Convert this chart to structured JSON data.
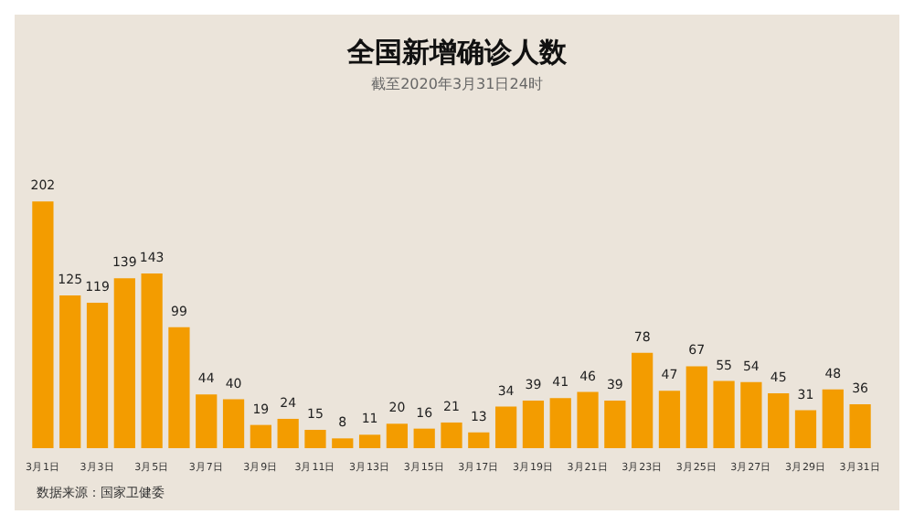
{
  "chart_data": {
    "type": "bar",
    "title": "全国新增确诊人数",
    "subtitle": "截至2020年3月31日24时",
    "categories": [
      "3月1日",
      null,
      "3月3日",
      null,
      "3月5日",
      null,
      "3月7日",
      null,
      "3月9日",
      null,
      "3月11日",
      null,
      "3月13日",
      null,
      "3月15日",
      null,
      "3月17日",
      null,
      "3月19日",
      null,
      "3月21日",
      null,
      "3月23日",
      null,
      "3月25日",
      null,
      "3月27日",
      null,
      "3月29日",
      null,
      "3月31日"
    ],
    "values": [
      202,
      125,
      119,
      139,
      143,
      99,
      44,
      40,
      19,
      24,
      15,
      8,
      11,
      20,
      16,
      21,
      13,
      34,
      39,
      41,
      46,
      39,
      78,
      47,
      67,
      55,
      54,
      45,
      31,
      48,
      36
    ],
    "color": "#f39c00",
    "data_labels": true,
    "annotations": [
      "数据来源：国家卫健委"
    ]
  }
}
